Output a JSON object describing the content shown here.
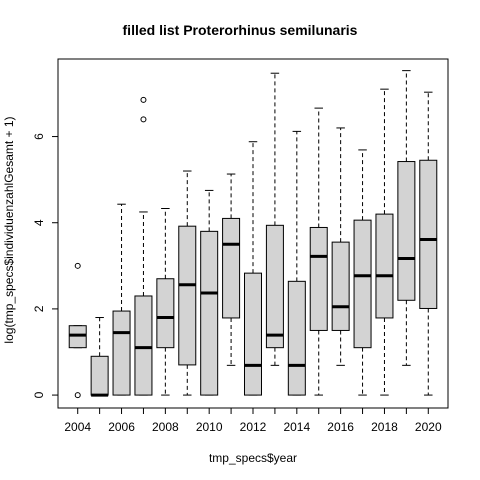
{
  "chart_data": {
    "type": "boxplot",
    "title": "filled list Proterorhinus semilunaris",
    "xlabel": "tmp_specs$year",
    "ylabel": "log(tmp_specs$individuenzahlGesamt + 1)",
    "ylim": [
      -0.3,
      7.8
    ],
    "yticks": [
      0,
      2,
      4,
      6
    ],
    "grid": false,
    "categories": [
      "2004",
      "2005",
      "2006",
      "2007",
      "2008",
      "2009",
      "2010",
      "2011",
      "2012",
      "2013",
      "2014",
      "2015",
      "2016",
      "2017",
      "2018",
      "2019",
      "2020"
    ],
    "xtick_labels_shown": [
      "2004",
      "2006",
      "2008",
      "2010",
      "2012",
      "2014",
      "2016",
      "2018",
      "2020"
    ],
    "box_fill": "#d3d3d3",
    "boxes": [
      {
        "year": "2004",
        "whisker_low": 1.1,
        "q1": 1.1,
        "median": 1.39,
        "q3": 1.61,
        "whisker_high": 1.61,
        "outliers": [
          0.0,
          3.0
        ]
      },
      {
        "year": "2005",
        "whisker_low": 0.0,
        "q1": 0.0,
        "median": 0.0,
        "q3": 0.9,
        "whisker_high": 1.8,
        "outliers": []
      },
      {
        "year": "2006",
        "whisker_low": 0.0,
        "q1": 0.0,
        "median": 1.45,
        "q3": 1.95,
        "whisker_high": 4.43,
        "outliers": []
      },
      {
        "year": "2007",
        "whisker_low": 0.0,
        "q1": 0.0,
        "median": 1.1,
        "q3": 2.3,
        "whisker_high": 4.25,
        "outliers": [
          6.4,
          6.85
        ]
      },
      {
        "year": "2008",
        "whisker_low": 0.0,
        "q1": 1.1,
        "median": 1.8,
        "q3": 2.7,
        "whisker_high": 4.33,
        "outliers": []
      },
      {
        "year": "2009",
        "whisker_low": 0.0,
        "q1": 0.7,
        "median": 2.56,
        "q3": 3.92,
        "whisker_high": 5.2,
        "outliers": []
      },
      {
        "year": "2010",
        "whisker_low": 0.0,
        "q1": 0.0,
        "median": 2.37,
        "q3": 3.8,
        "whisker_high": 4.75,
        "outliers": []
      },
      {
        "year": "2011",
        "whisker_low": 0.69,
        "q1": 1.79,
        "median": 3.5,
        "q3": 4.1,
        "whisker_high": 5.13,
        "outliers": []
      },
      {
        "year": "2012",
        "whisker_low": 0.0,
        "q1": 0.0,
        "median": 0.69,
        "q3": 2.83,
        "whisker_high": 5.88,
        "outliers": []
      },
      {
        "year": "2013",
        "whisker_low": 0.69,
        "q1": 1.1,
        "median": 1.39,
        "q3": 3.94,
        "whisker_high": 7.47,
        "outliers": []
      },
      {
        "year": "2014",
        "whisker_low": 0.0,
        "q1": 0.0,
        "median": 0.69,
        "q3": 2.64,
        "whisker_high": 6.12,
        "outliers": []
      },
      {
        "year": "2015",
        "whisker_low": 0.0,
        "q1": 1.5,
        "median": 3.22,
        "q3": 3.89,
        "whisker_high": 6.66,
        "outliers": []
      },
      {
        "year": "2016",
        "whisker_low": 0.69,
        "q1": 1.5,
        "median": 2.05,
        "q3": 3.55,
        "whisker_high": 6.2,
        "outliers": []
      },
      {
        "year": "2017",
        "whisker_low": 0.0,
        "q1": 1.1,
        "median": 2.77,
        "q3": 4.06,
        "whisker_high": 5.69,
        "outliers": []
      },
      {
        "year": "2018",
        "whisker_low": 0.0,
        "q1": 1.79,
        "median": 2.77,
        "q3": 4.2,
        "whisker_high": 7.1,
        "outliers": []
      },
      {
        "year": "2019",
        "whisker_low": 0.69,
        "q1": 2.2,
        "median": 3.17,
        "q3": 5.42,
        "whisker_high": 7.53,
        "outliers": []
      },
      {
        "year": "2020",
        "whisker_low": 0.0,
        "q1": 2.01,
        "median": 3.61,
        "q3": 5.45,
        "whisker_high": 7.03,
        "outliers": []
      }
    ]
  }
}
